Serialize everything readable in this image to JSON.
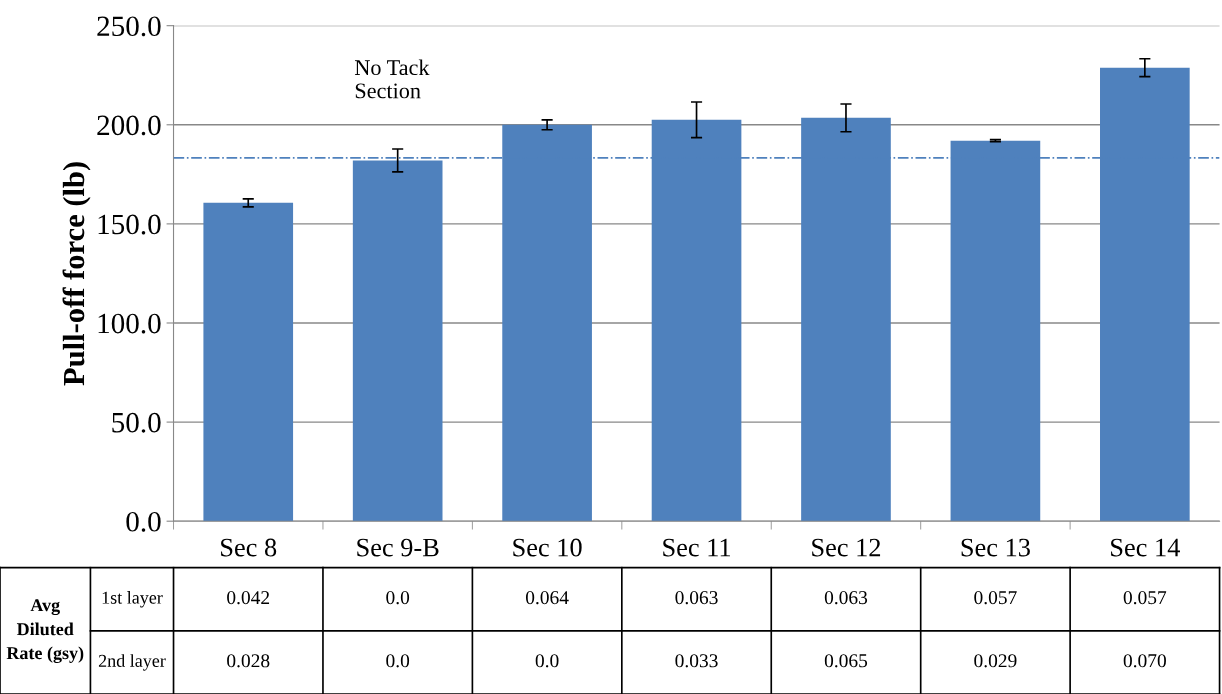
{
  "chart_data": [
    {
      "type": "bar",
      "ylabel": "Pull-off force (lb)",
      "categories": [
        "Sec 8",
        "Sec 9-B",
        "Sec 10",
        "Sec 11",
        "Sec 12",
        "Sec 13",
        "Sec 14"
      ],
      "values": [
        160.6,
        182,
        200,
        202.5,
        203.5,
        192,
        228.8
      ],
      "errors": [
        2,
        5.8,
        2.5,
        9,
        7,
        0.5,
        4.5
      ],
      "color": "#4f81bd",
      "ylim": [
        0,
        250
      ],
      "yticks": [
        {
          "value": 0,
          "label": "0.0"
        },
        {
          "value": 50,
          "label": "50.0"
        },
        {
          "value": 100,
          "label": "100.0"
        },
        {
          "value": 150,
          "label": "150.0"
        },
        {
          "value": 200,
          "label": "200.0"
        },
        {
          "value": 250,
          "label": "250.0"
        }
      ],
      "grid": "y",
      "ref_lines": [
        {
          "axis": "y",
          "value": 183.3,
          "color": "#4f81bd",
          "line_style": "dashdot"
        }
      ],
      "annotations": [
        "No Tack\nSection"
      ]
    },
    {
      "type": "other",
      "title": "Avg Diluted Rate (gsy)",
      "y_categories": [
        "1st layer",
        "2nd layer"
      ],
      "annotations": [
        "0.042",
        "0.0",
        "0.064",
        "0.063",
        "0.063",
        "0.057",
        "0.057",
        "0.028",
        "0.0",
        "0.0",
        "0.033",
        "0.065",
        "0.029",
        "0.070"
      ]
    }
  ]
}
